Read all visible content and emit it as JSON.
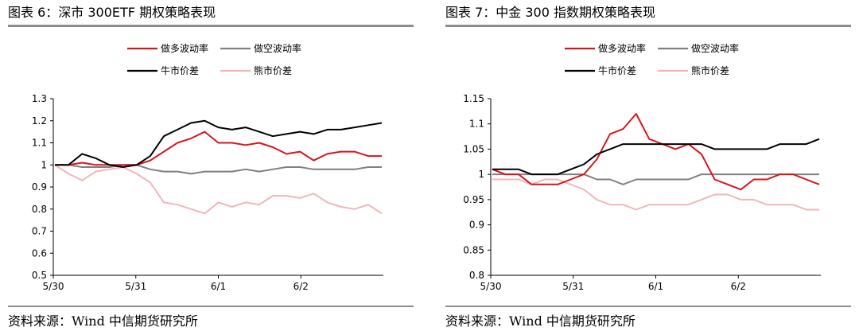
{
  "colors": {
    "long_vol": "#d9141c",
    "short_vol": "#7f7f7f",
    "bull": "#000000",
    "bear": "#f2b6b8",
    "rule": "#8c8c8c"
  },
  "panels": [
    {
      "title": "图表 6：深市 300ETF 期权策略表现",
      "source": "资料来源：Wind  中信期货研究所"
    },
    {
      "title": "图表 7：中金 300 指数期权策略表现",
      "source": "资料来源：Wind  中信期货研究所"
    }
  ],
  "chart_data": [
    {
      "type": "line",
      "x_labels": [
        "5/30",
        "5/31",
        "6/1",
        "6/2"
      ],
      "ylim": [
        0.5,
        1.3
      ],
      "yticks": [
        0.5,
        0.6,
        0.7,
        0.8,
        0.9,
        1.0,
        1.1,
        1.2,
        1.3
      ],
      "ytick_labels": [
        "0.5",
        "0.6",
        "0.7",
        "0.8",
        "0.9",
        "1",
        "1.1",
        "1.2",
        "1.3"
      ],
      "series": [
        {
          "name": "做多波动率",
          "color": "#d9141c",
          "values": [
            1.0,
            1.0,
            1.01,
            1.0,
            1.0,
            1.0,
            1.0,
            1.02,
            1.06,
            1.1,
            1.12,
            1.15,
            1.1,
            1.1,
            1.09,
            1.1,
            1.08,
            1.05,
            1.06,
            1.02,
            1.05,
            1.06,
            1.06,
            1.04,
            1.04
          ]
        },
        {
          "name": "做空波动率",
          "color": "#7f7f7f",
          "values": [
            1.0,
            1.0,
            0.99,
            0.99,
            0.99,
            1.0,
            1.0,
            0.98,
            0.97,
            0.97,
            0.96,
            0.97,
            0.97,
            0.97,
            0.98,
            0.97,
            0.98,
            0.99,
            0.99,
            0.98,
            0.98,
            0.98,
            0.98,
            0.99,
            0.99
          ]
        },
        {
          "name": "牛市价差",
          "color": "#000000",
          "values": [
            1.0,
            1.0,
            1.05,
            1.03,
            1.0,
            0.99,
            1.0,
            1.04,
            1.13,
            1.16,
            1.19,
            1.2,
            1.17,
            1.16,
            1.17,
            1.15,
            1.13,
            1.14,
            1.15,
            1.14,
            1.16,
            1.16,
            1.17,
            1.18,
            1.19
          ]
        },
        {
          "name": "熊市价差",
          "color": "#f2b6b8",
          "values": [
            1.0,
            0.96,
            0.93,
            0.97,
            0.98,
            0.99,
            0.96,
            0.92,
            0.83,
            0.82,
            0.8,
            0.78,
            0.83,
            0.81,
            0.83,
            0.82,
            0.86,
            0.86,
            0.85,
            0.87,
            0.83,
            0.81,
            0.8,
            0.82,
            0.78
          ]
        }
      ]
    },
    {
      "type": "line",
      "x_labels": [
        "5/30",
        "5/31",
        "6/1",
        "6/2"
      ],
      "ylim": [
        0.8,
        1.15
      ],
      "yticks": [
        0.8,
        0.85,
        0.9,
        0.95,
        1.0,
        1.05,
        1.1,
        1.15
      ],
      "ytick_labels": [
        "0.8",
        "0.85",
        "0.9",
        "0.95",
        "1",
        "1.05",
        "1.1",
        "1.15"
      ],
      "series": [
        {
          "name": "做多波动率",
          "color": "#d9141c",
          "values": [
            1.01,
            1.0,
            1.0,
            0.98,
            0.98,
            0.98,
            0.99,
            1.0,
            1.03,
            1.08,
            1.09,
            1.12,
            1.07,
            1.06,
            1.05,
            1.06,
            1.04,
            0.99,
            0.98,
            0.97,
            0.99,
            0.99,
            1.0,
            1.0,
            0.99,
            0.98
          ]
        },
        {
          "name": "做空波动率",
          "color": "#7f7f7f",
          "values": [
            1.0,
            1.0,
            1.0,
            1.0,
            1.0,
            1.0,
            1.0,
            1.0,
            0.99,
            0.99,
            0.98,
            0.99,
            0.99,
            0.99,
            0.99,
            0.99,
            1.0,
            1.0,
            1.0,
            1.0,
            1.0,
            1.0,
            1.0,
            1.0,
            1.0,
            1.0
          ]
        },
        {
          "name": "牛市价差",
          "color": "#000000",
          "values": [
            1.01,
            1.01,
            1.01,
            1.0,
            1.0,
            1.0,
            1.01,
            1.02,
            1.04,
            1.05,
            1.06,
            1.06,
            1.06,
            1.06,
            1.06,
            1.06,
            1.06,
            1.05,
            1.05,
            1.05,
            1.05,
            1.05,
            1.06,
            1.06,
            1.06,
            1.07
          ]
        },
        {
          "name": "熊市价差",
          "color": "#f2b6b8",
          "values": [
            0.99,
            0.99,
            0.99,
            0.98,
            0.99,
            0.99,
            0.98,
            0.97,
            0.95,
            0.94,
            0.94,
            0.93,
            0.94,
            0.94,
            0.94,
            0.94,
            0.95,
            0.96,
            0.96,
            0.95,
            0.95,
            0.94,
            0.94,
            0.94,
            0.93,
            0.93
          ]
        }
      ]
    }
  ]
}
